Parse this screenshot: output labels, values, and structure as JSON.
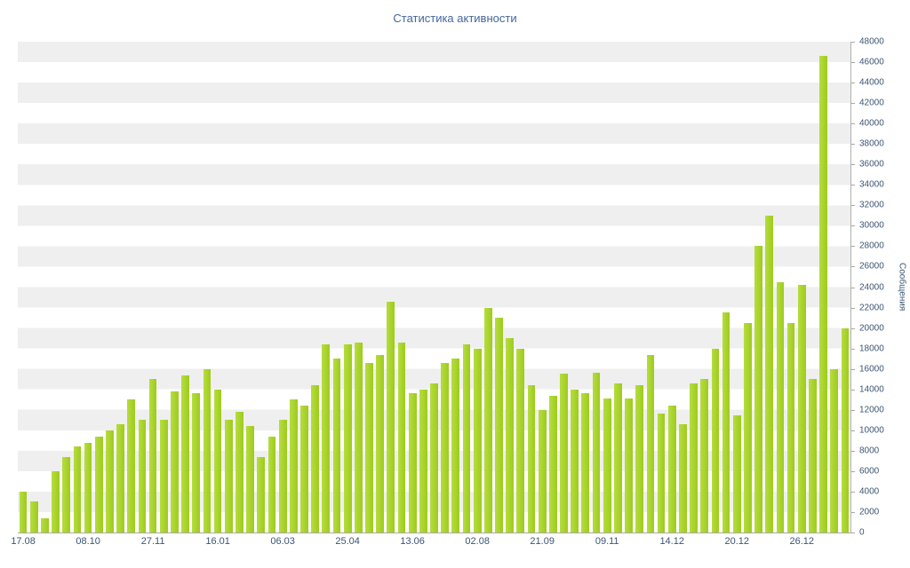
{
  "page": {
    "title": "Статистика активности"
  },
  "colors": {
    "title_text": "#44669c",
    "axis_text": "#3b5574",
    "bar": "#a6d32a",
    "bar_gradient": [
      "#b6dd3f",
      "#9ecb1d"
    ],
    "stripe": "#efefef",
    "axis_line": "#a8a8a8",
    "background": "#ffffff"
  },
  "chart_data": {
    "type": "bar",
    "title": "Статистика активности",
    "xlabel": "",
    "ylabel": "Сообщения",
    "ylim": [
      0,
      48000
    ],
    "y_tick_step": 2000,
    "grid": "horizontal-stripe-bands",
    "legend": "none",
    "y_ticks": [
      "0",
      "2000",
      "4000",
      "6000",
      "8000",
      "10000",
      "12000",
      "14000",
      "16000",
      "18000",
      "20000",
      "22000",
      "24000",
      "26000",
      "28000",
      "30000",
      "32000",
      "34000",
      "36000",
      "38000",
      "40000",
      "42000",
      "44000",
      "46000",
      "48000"
    ],
    "x_tick_labels": [
      "17.08",
      "08.10",
      "27.11",
      "16.01",
      "06.03",
      "25.04",
      "13.06",
      "02.08",
      "21.09",
      "09.11",
      "14.12",
      "20.12",
      "26.12"
    ],
    "x_tick_indices": [
      0,
      6,
      12,
      18,
      24,
      30,
      36,
      42,
      48,
      54,
      60,
      66,
      72
    ],
    "values": [
      4000,
      3000,
      1400,
      6000,
      7400,
      8400,
      8800,
      9400,
      10000,
      10600,
      13000,
      11000,
      15000,
      11000,
      13800,
      15400,
      13600,
      16000,
      14000,
      11000,
      11800,
      10400,
      7400,
      9400,
      11000,
      13000,
      12400,
      14400,
      18400,
      17000,
      18400,
      18600,
      16600,
      17400,
      22600,
      18600,
      13600,
      14000,
      14600,
      16600,
      17000,
      18400,
      18000,
      22000,
      21000,
      19000,
      18000,
      14400,
      12000,
      13400,
      15500,
      14000,
      13600,
      15600,
      13100,
      14600,
      13100,
      14400,
      17400,
      11600,
      12400,
      10600,
      14600,
      15000,
      18000,
      21500,
      11500,
      20500,
      28000,
      31000,
      24500,
      20500,
      24200,
      15000,
      46600,
      16000,
      20000
    ]
  }
}
